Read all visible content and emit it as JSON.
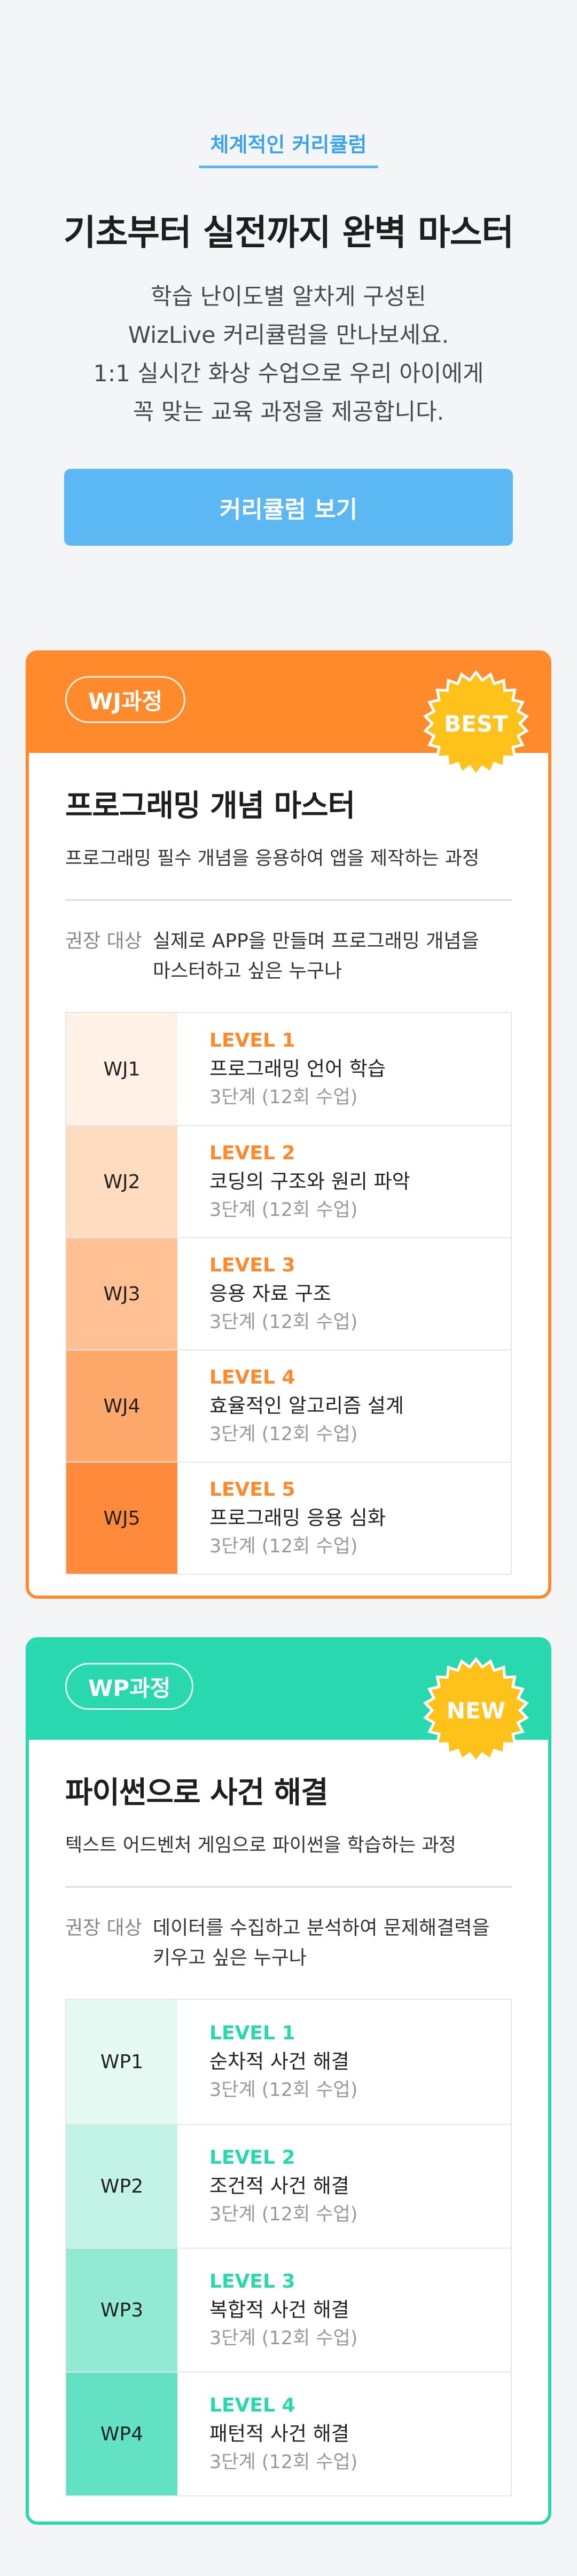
{
  "hero": {
    "kicker": "체계적인 커리큘럼",
    "title": "기초부터 실전까지 완벽 마스터",
    "desc_lines": [
      "학습 난이도별 알차게 구성된",
      "WizLive 커리큘럼을 만나보세요.",
      "1:1 실시간 화상 수업으로 우리 아이에게",
      "꼭 맞는 교육 과정을 제공합니다."
    ],
    "button_label": "커리큘럼 보기",
    "accent_color": "#5cb8f2"
  },
  "courses": [
    {
      "tag": "WJ과정",
      "badge": "BEST",
      "color": "#ff8a2b",
      "title": "프로그래밍 개념 마스터",
      "subtitle": "프로그래밍 필수 개념을 응용하여 앱을 제작하는 과정",
      "target_label": "권장 대상",
      "target_lines": [
        "실제로 APP을 만들며 프로그래밍 개념을",
        "마스터하고 싶은 누구나"
      ],
      "levels": [
        {
          "code": "WJ1",
          "level": "LEVEL 1",
          "title": "프로그래밍 언어 학습",
          "meta": "3단계 (12회 수업)"
        },
        {
          "code": "WJ2",
          "level": "LEVEL 2",
          "title": "코딩의 구조와 원리 파악",
          "meta": "3단계 (12회 수업)"
        },
        {
          "code": "WJ3",
          "level": "LEVEL 3",
          "title": "응용 자료 구조",
          "meta": "3단계 (12회 수업)"
        },
        {
          "code": "WJ4",
          "level": "LEVEL 4",
          "title": "효율적인 알고리즘 설계",
          "meta": "3단계 (12회 수업)"
        },
        {
          "code": "WJ5",
          "level": "LEVEL 5",
          "title": "프로그래밍 응용 심화",
          "meta": "3단계 (12회 수업)"
        }
      ]
    },
    {
      "tag": "WP과정",
      "badge": "NEW",
      "color": "#2ad8b0",
      "title": "파이썬으로 사건 해결",
      "subtitle": "텍스트 어드벤처 게임으로 파이썬을 학습하는 과정",
      "target_label": "권장 대상",
      "target_lines": [
        "데이터를 수집하고 분석하여 문제해결력을",
        "키우고 싶은 누구나"
      ],
      "levels": [
        {
          "code": "WP1",
          "level": "LEVEL 1",
          "title": "순차적 사건 해결",
          "meta": "3단계 (12회 수업)"
        },
        {
          "code": "WP2",
          "level": "LEVEL 2",
          "title": "조건적 사건 해결",
          "meta": "3단계 (12회 수업)"
        },
        {
          "code": "WP3",
          "level": "LEVEL 3",
          "title": "복합적 사건 해결",
          "meta": "3단계 (12회 수업)"
        },
        {
          "code": "WP4",
          "level": "LEVEL 4",
          "title": "패턴적 사건 해결",
          "meta": "3단계 (12회 수업)"
        }
      ]
    }
  ]
}
